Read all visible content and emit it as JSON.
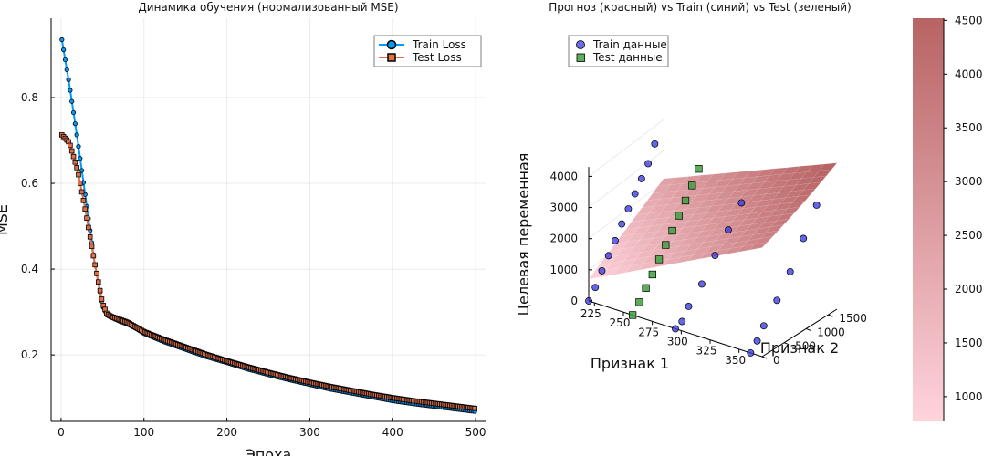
{
  "chart_data": [
    {
      "type": "line",
      "title": "Динамика обучения (нормализованный MSE)",
      "xlabel": "Эпоха",
      "ylabel": "MSE",
      "xlim": [
        -12,
        512
      ],
      "ylim": [
        0.045,
        0.985
      ],
      "x_ticks": [
        0,
        100,
        200,
        300,
        400,
        500
      ],
      "y_ticks": [
        0.2,
        0.4,
        0.6,
        0.8
      ],
      "x_tick_labels": [
        "0",
        "100",
        "200",
        "300",
        "400",
        "500"
      ],
      "y_tick_labels": [
        "0.2",
        "0.4",
        "0.6",
        "0.8"
      ],
      "grid": true,
      "legend_position": "top-right",
      "series": [
        {
          "name": "Train Loss",
          "color": "#009AFA",
          "marker": "circle",
          "points": [
            [
              1,
              0.935
            ],
            [
              10,
              0.83
            ],
            [
              20,
              0.7
            ],
            [
              30,
              0.56
            ],
            [
              40,
              0.42
            ],
            [
              50,
              0.315
            ],
            [
              55,
              0.293
            ],
            [
              60,
              0.288
            ],
            [
              70,
              0.279
            ],
            [
              80,
              0.272
            ],
            [
              90,
              0.262
            ],
            [
              100,
              0.25
            ],
            [
              125,
              0.23
            ],
            [
              150,
              0.213
            ],
            [
              175,
              0.196
            ],
            [
              200,
              0.182
            ],
            [
              225,
              0.167
            ],
            [
              250,
              0.154
            ],
            [
              275,
              0.142
            ],
            [
              300,
              0.131
            ],
            [
              325,
              0.12
            ],
            [
              350,
              0.111
            ],
            [
              375,
              0.102
            ],
            [
              400,
              0.093
            ],
            [
              425,
              0.086
            ],
            [
              450,
              0.08
            ],
            [
              475,
              0.074
            ],
            [
              500,
              0.068
            ]
          ]
        },
        {
          "name": "Test Loss",
          "color": "#E26F46",
          "marker": "square",
          "points": [
            [
              1,
              0.713
            ],
            [
              10,
              0.695
            ],
            [
              20,
              0.63
            ],
            [
              30,
              0.53
            ],
            [
              40,
              0.42
            ],
            [
              50,
              0.32
            ],
            [
              55,
              0.297
            ],
            [
              60,
              0.29
            ],
            [
              70,
              0.283
            ],
            [
              80,
              0.276
            ],
            [
              90,
              0.265
            ],
            [
              100,
              0.254
            ],
            [
              125,
              0.235
            ],
            [
              150,
              0.218
            ],
            [
              175,
              0.201
            ],
            [
              200,
              0.186
            ],
            [
              225,
              0.172
            ],
            [
              250,
              0.159
            ],
            [
              275,
              0.147
            ],
            [
              300,
              0.136
            ],
            [
              325,
              0.126
            ],
            [
              350,
              0.117
            ],
            [
              375,
              0.108
            ],
            [
              400,
              0.1
            ],
            [
              425,
              0.093
            ],
            [
              450,
              0.087
            ],
            [
              475,
              0.081
            ],
            [
              500,
              0.075
            ]
          ]
        }
      ]
    },
    {
      "type": "scatter",
      "subtype": "3d-surface-with-scatter",
      "title": "Прогноз (красный) vs Train (синий) vs Test (зеленый)",
      "xlabel": "Признак 1",
      "ylabel": "Признак 2",
      "zlabel": "Целевая переменная",
      "x_ticks": [
        "225",
        "250",
        "275",
        "300",
        "325",
        "350"
      ],
      "y_ticks": [
        "0",
        "500",
        "1000",
        "1500"
      ],
      "z_ticks": [
        "0",
        "1000",
        "2000",
        "3000",
        "4000"
      ],
      "colorbar": {
        "range": [
          770,
          4520
        ],
        "ticks": [
          "1000",
          "1500",
          "2000",
          "2500",
          "3000",
          "3500",
          "4000",
          "4500"
        ],
        "color_low": "#FFD3DC",
        "color_high": "#B86363"
      },
      "legend_position": "top-left",
      "series": [
        {
          "name": "Train данные",
          "color": "#3A3AE0",
          "marker": "circle",
          "points": [
            [
              220,
              0,
              0
            ],
            [
              220,
              150,
              300
            ],
            [
              220,
              300,
              700
            ],
            [
              220,
              450,
              1050
            ],
            [
              220,
              600,
              1400
            ],
            [
              220,
              750,
              1800
            ],
            [
              220,
              900,
              2150
            ],
            [
              220,
              1050,
              2500
            ],
            [
              220,
              1200,
              2850
            ],
            [
              220,
              1350,
              3200
            ],
            [
              220,
              1500,
              3700
            ],
            [
              295,
              0,
              0
            ],
            [
              295,
              150,
              100
            ],
            [
              295,
              300,
              450
            ],
            [
              295,
              600,
              900
            ],
            [
              295,
              900,
              1550
            ],
            [
              295,
              1200,
              2100
            ],
            [
              295,
              1500,
              2700
            ],
            [
              360,
              0,
              0
            ],
            [
              360,
              150,
              250
            ],
            [
              360,
              300,
              600
            ],
            [
              360,
              600,
              1150
            ],
            [
              360,
              900,
              1800
            ],
            [
              360,
              1200,
              2600
            ],
            [
              360,
              1500,
              3400
            ]
          ]
        },
        {
          "name": "Test данные",
          "color": "#3FA03F",
          "marker": "square",
          "points": [
            [
              258,
              0,
              0
            ],
            [
              258,
              150,
              280
            ],
            [
              258,
              300,
              600
            ],
            [
              258,
              450,
              900
            ],
            [
              258,
              600,
              1250
            ],
            [
              258,
              750,
              1580
            ],
            [
              258,
              900,
              1900
            ],
            [
              258,
              1050,
              2250
            ],
            [
              258,
              1200,
              2600
            ],
            [
              258,
              1350,
              2950
            ],
            [
              258,
              1500,
              3350
            ]
          ]
        }
      ]
    }
  ]
}
